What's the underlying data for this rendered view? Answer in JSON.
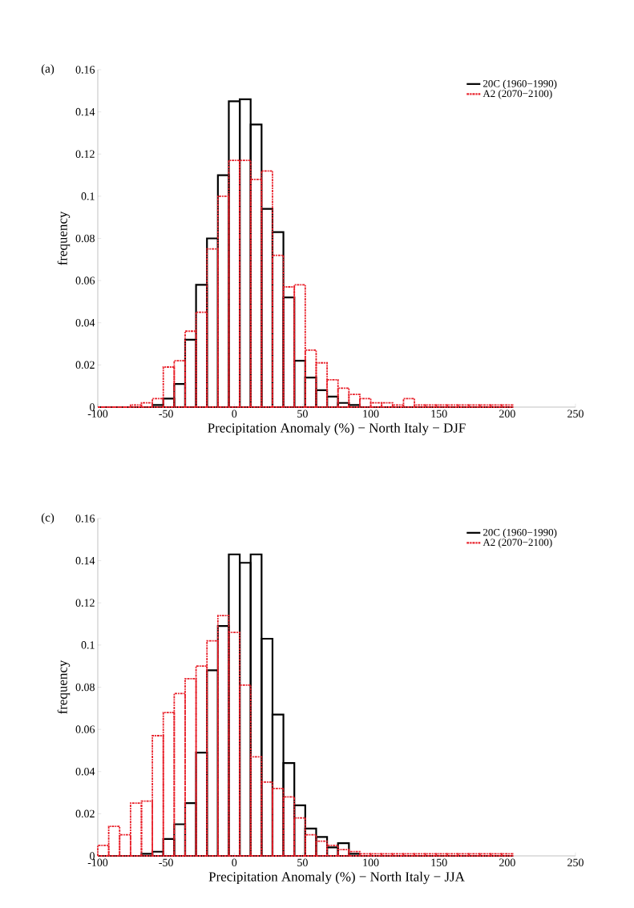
{
  "chart_data": [
    {
      "type": "histogram",
      "annotations": [
        "(a)"
      ],
      "xlabel": "Precipitation Anomaly (%) − North Italy − DJF",
      "ylabel": "frequency",
      "bins": [
        -100,
        -92,
        -84,
        -76,
        -68,
        -60,
        -52,
        -44,
        -36,
        -28,
        -20,
        -12,
        -4,
        4,
        12,
        20,
        28,
        36,
        44,
        52,
        60,
        68,
        76,
        84,
        92,
        100,
        108,
        116,
        124,
        132,
        140,
        148,
        156,
        164,
        172,
        180,
        188,
        196,
        204
      ],
      "series": [
        {
          "name": "20C (1960−1990)",
          "color": "#000000",
          "line_style": "solid",
          "values": [
            0,
            0,
            0,
            0,
            0,
            0.001,
            0.004,
            0.011,
            0.032,
            0.058,
            0.08,
            0.11,
            0.145,
            0.146,
            0.134,
            0.094,
            0.083,
            0.052,
            0.022,
            0.014,
            0.008,
            0.005,
            0.002,
            0.001,
            0,
            0,
            0,
            0,
            0,
            0,
            0,
            0,
            0,
            0,
            0,
            0,
            0,
            0
          ]
        },
        {
          "name": "A2 (2070−2100)",
          "color": "#e8202a",
          "line_style": "dashed",
          "values": [
            0,
            0,
            0,
            0.001,
            0.002,
            0.004,
            0.019,
            0.022,
            0.036,
            0.045,
            0.075,
            0.1,
            0.117,
            0.117,
            0.108,
            0.112,
            0.072,
            0.057,
            0.058,
            0.027,
            0.021,
            0.013,
            0.009,
            0.006,
            0.004,
            0.002,
            0.002,
            0.001,
            0.004,
            0.001,
            0.001,
            0.001,
            0.001,
            0.001,
            0.001,
            0.001,
            0.001,
            0.001
          ]
        }
      ],
      "xlim": [
        -100,
        250
      ],
      "xticks": [
        -100,
        -50,
        0,
        50,
        100,
        150,
        200,
        250
      ],
      "ylim": [
        0,
        0.16
      ],
      "yticks": [
        0,
        0.02,
        0.04,
        0.06,
        0.08,
        0.1,
        0.12,
        0.14,
        0.16
      ],
      "legend": "top right"
    },
    {
      "type": "histogram",
      "annotations": [
        "(c)"
      ],
      "xlabel": "Precipitation Anomaly (%) − North Italy − JJA",
      "ylabel": "frequency",
      "bins": [
        -100,
        -92,
        -84,
        -76,
        -68,
        -60,
        -52,
        -44,
        -36,
        -28,
        -20,
        -12,
        -4,
        4,
        12,
        20,
        28,
        36,
        44,
        52,
        60,
        68,
        76,
        84,
        92,
        100,
        108,
        116,
        124,
        132,
        140,
        148,
        156,
        164,
        172,
        180,
        188,
        196,
        204
      ],
      "series": [
        {
          "name": "20C (1960−1990)",
          "color": "#000000",
          "line_style": "solid",
          "values": [
            0,
            0,
            0,
            0,
            0.001,
            0.002,
            0.008,
            0.015,
            0.025,
            0.049,
            0.088,
            0.109,
            0.143,
            0.139,
            0.143,
            0.103,
            0.067,
            0.044,
            0.024,
            0.013,
            0.009,
            0.004,
            0.006,
            0.001,
            0,
            0,
            0,
            0,
            0,
            0,
            0,
            0,
            0,
            0,
            0,
            0,
            0,
            0
          ]
        },
        {
          "name": "A2 (2070−2100)",
          "color": "#e8202a",
          "line_style": "dashed",
          "values": [
            0.005,
            0.014,
            0.01,
            0.025,
            0.026,
            0.057,
            0.068,
            0.077,
            0.084,
            0.09,
            0.102,
            0.114,
            0.106,
            0.081,
            0.047,
            0.035,
            0.032,
            0.028,
            0.018,
            0.01,
            0.007,
            0.005,
            0.003,
            0.002,
            0.001,
            0.001,
            0.001,
            0.001,
            0.001,
            0.001,
            0.001,
            0.001,
            0.001,
            0.001,
            0.001,
            0.001,
            0.001,
            0.001
          ]
        }
      ],
      "xlim": [
        -100,
        250
      ],
      "xticks": [
        -100,
        -50,
        0,
        50,
        100,
        150,
        200,
        250
      ],
      "ylim": [
        0,
        0.16
      ],
      "yticks": [
        0,
        0.02,
        0.04,
        0.06,
        0.08,
        0.1,
        0.12,
        0.14,
        0.16
      ],
      "legend": "top right"
    }
  ]
}
